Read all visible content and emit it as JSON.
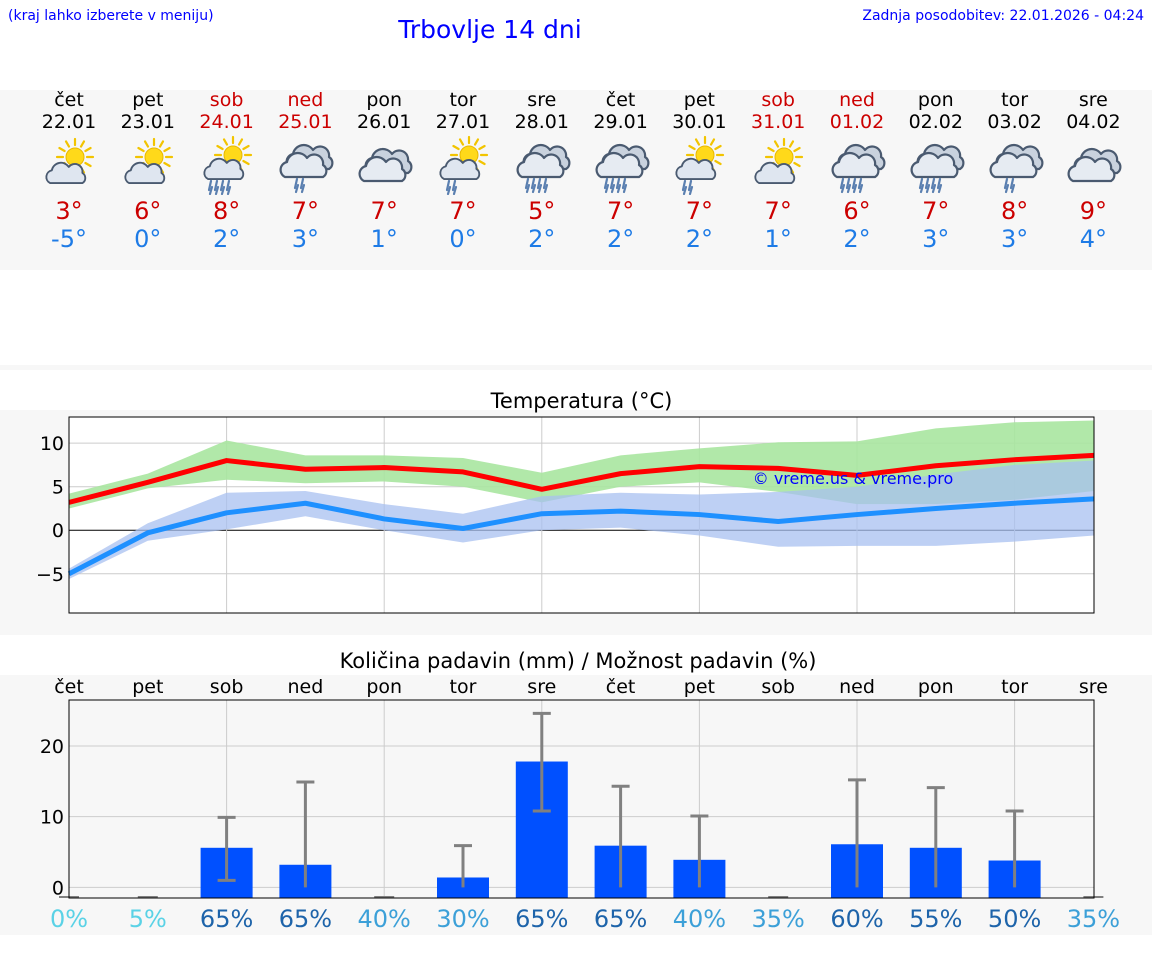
{
  "header": {
    "hint": "(kraj lahko izberete v meniju)",
    "title": "Trbovlje 14 dni",
    "updated": "Zadnja posodobitev: 22.01.2026 - 04:24"
  },
  "days": [
    {
      "name": "čet",
      "date": "22.01",
      "weekend": false,
      "icon": "partly-cloudy-icon",
      "tmax": "3°",
      "tmin": "-5°"
    },
    {
      "name": "pet",
      "date": "23.01",
      "weekend": false,
      "icon": "partly-cloudy-icon",
      "tmax": "6°",
      "tmin": "0°"
    },
    {
      "name": "sob",
      "date": "24.01",
      "weekend": true,
      "icon": "sun-rain-icon",
      "tmax": "8°",
      "tmin": "2°"
    },
    {
      "name": "ned",
      "date": "25.01",
      "weekend": true,
      "icon": "cloud-light-rain-icon",
      "tmax": "7°",
      "tmin": "3°"
    },
    {
      "name": "pon",
      "date": "26.01",
      "weekend": false,
      "icon": "cloudy-icon",
      "tmax": "7°",
      "tmin": "1°"
    },
    {
      "name": "tor",
      "date": "27.01",
      "weekend": false,
      "icon": "sun-light-rain-icon",
      "tmax": "7°",
      "tmin": "0°"
    },
    {
      "name": "sre",
      "date": "28.01",
      "weekend": false,
      "icon": "cloud-rain-icon",
      "tmax": "5°",
      "tmin": "2°"
    },
    {
      "name": "čet",
      "date": "29.01",
      "weekend": false,
      "icon": "cloud-rain-icon",
      "tmax": "7°",
      "tmin": "2°"
    },
    {
      "name": "pet",
      "date": "30.01",
      "weekend": false,
      "icon": "sun-light-rain-icon",
      "tmax": "7°",
      "tmin": "2°"
    },
    {
      "name": "sob",
      "date": "31.01",
      "weekend": true,
      "icon": "partly-cloudy-icon",
      "tmax": "7°",
      "tmin": "1°"
    },
    {
      "name": "ned",
      "date": "01.02",
      "weekend": true,
      "icon": "cloud-rain-icon",
      "tmax": "6°",
      "tmin": "2°"
    },
    {
      "name": "pon",
      "date": "02.02",
      "weekend": false,
      "icon": "cloud-rain-icon",
      "tmax": "7°",
      "tmin": "3°"
    },
    {
      "name": "tor",
      "date": "03.02",
      "weekend": false,
      "icon": "cloud-light-rain-icon",
      "tmax": "8°",
      "tmin": "3°"
    },
    {
      "name": "sre",
      "date": "04.02",
      "weekend": false,
      "icon": "cloudy-icon",
      "tmax": "9°",
      "tmin": "4°"
    }
  ],
  "colors": {
    "tmax": "#cc0000",
    "tmin": "#1e7be6",
    "title": "#0000ff",
    "max_line": "#ff0000",
    "min_line": "#1e90ff",
    "max_band": "#a8e6a0",
    "min_band": "#a8c0f0",
    "overlap_band": "#6fb9a6",
    "bar": "#0050ff",
    "whisker": "#808080",
    "pct_low": "#5ad2e6",
    "pct_mid": "#3ca0d8",
    "pct_high": "#1e64aa"
  },
  "chart_data": [
    {
      "type": "line",
      "title": "Temperatura (°C)",
      "watermark": "© vreme.us & vreme.pro",
      "x": [
        0,
        1,
        2,
        3,
        4,
        5,
        6,
        7,
        8,
        9,
        10,
        11,
        12,
        13
      ],
      "ylim": [
        -9.5,
        13
      ],
      "yticks": [
        10,
        5,
        0,
        -5
      ],
      "ytick_labels": [
        "10",
        "5",
        "0",
        "−5"
      ],
      "grid": true,
      "series": [
        {
          "name": "max",
          "values": [
            3.2,
            5.5,
            8.0,
            7.0,
            7.2,
            6.7,
            4.7,
            6.5,
            7.3,
            7.1,
            6.3,
            7.4,
            8.1,
            8.6
          ],
          "band_low": [
            2.5,
            4.8,
            5.8,
            5.4,
            5.6,
            5.0,
            3.2,
            5.0,
            5.5,
            4.4,
            3.0,
            3.0,
            3.5,
            4.5
          ],
          "band_high": [
            4.2,
            6.5,
            10.3,
            8.6,
            8.6,
            8.3,
            6.6,
            8.6,
            9.4,
            10.1,
            10.2,
            11.7,
            12.4,
            12.6
          ]
        },
        {
          "name": "min",
          "values": [
            -5.0,
            -0.3,
            2.0,
            3.1,
            1.3,
            0.2,
            1.9,
            2.2,
            1.8,
            1.0,
            1.8,
            2.5,
            3.1,
            3.6
          ],
          "band_low": [
            -5.6,
            -1.2,
            0.1,
            1.6,
            0.0,
            -1.4,
            0.0,
            0.3,
            -0.6,
            -1.9,
            -1.8,
            -1.8,
            -1.3,
            -0.6
          ],
          "band_high": [
            -4.4,
            0.8,
            4.3,
            4.5,
            3.0,
            1.9,
            3.9,
            4.3,
            4.1,
            4.4,
            5.0,
            6.4,
            7.5,
            8.0
          ]
        }
      ]
    },
    {
      "type": "bar",
      "title": "Količina padavin (mm) / Možnost padavin (%)",
      "categories": [
        "čet",
        "pet",
        "sob",
        "ned",
        "pon",
        "tor",
        "sre",
        "čet",
        "pet",
        "sob",
        "ned",
        "pon",
        "tor",
        "sre"
      ],
      "values": [
        0,
        0,
        5.6,
        3.2,
        0,
        1.4,
        17.8,
        5.9,
        3.9,
        0,
        6.1,
        5.6,
        3.8,
        0
      ],
      "err_low": [
        0,
        0,
        1.0,
        0,
        0,
        0,
        10.8,
        0,
        0,
        0,
        0,
        0,
        0,
        0
      ],
      "err_high": [
        0,
        0.1,
        9.9,
        14.9,
        0.1,
        5.9,
        24.6,
        14.3,
        10.1,
        0.1,
        15.2,
        14.1,
        10.8,
        0.1
      ],
      "ylim": [
        -1.5,
        26.5
      ],
      "yticks": [
        20,
        10,
        0
      ],
      "ytick_labels": [
        "20",
        "10",
        "0"
      ],
      "probabilities": [
        "0%",
        "5%",
        "65%",
        "65%",
        "40%",
        "30%",
        "65%",
        "65%",
        "40%",
        "35%",
        "60%",
        "55%",
        "50%",
        "35%"
      ],
      "probability_values": [
        0,
        5,
        65,
        65,
        40,
        30,
        65,
        65,
        40,
        35,
        60,
        55,
        50,
        35
      ]
    }
  ]
}
